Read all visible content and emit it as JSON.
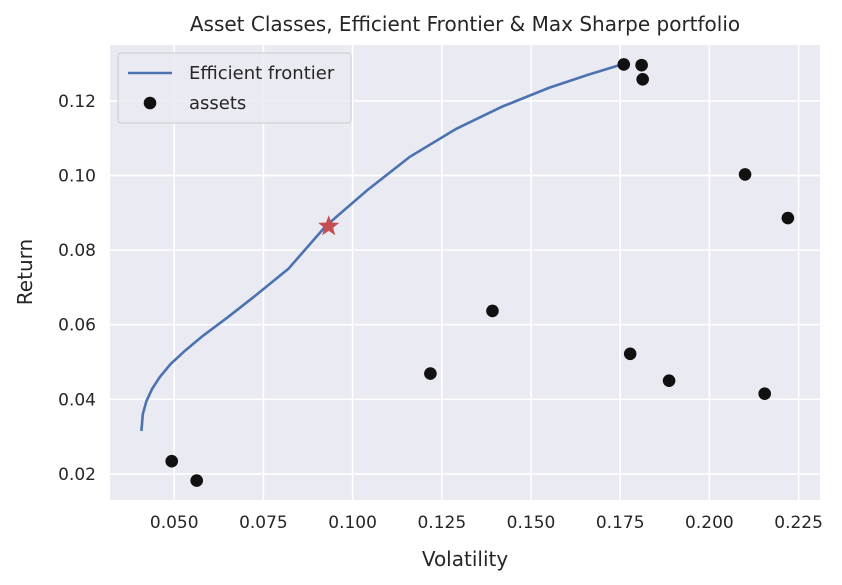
{
  "chart_data": {
    "type": "scatter",
    "title": "Asset Classes, Efficient Frontier & Max Sharpe portfolio",
    "xlabel": "Volatility",
    "ylabel": "Return",
    "xlim": [
      0.032,
      0.231
    ],
    "ylim": [
      0.013,
      0.135
    ],
    "xticks": [
      0.05,
      0.075,
      0.1,
      0.125,
      0.15,
      0.175,
      0.2,
      0.225
    ],
    "xtick_labels": [
      "0.050",
      "0.075",
      "0.100",
      "0.125",
      "0.150",
      "0.175",
      "0.200",
      "0.225"
    ],
    "yticks": [
      0.02,
      0.04,
      0.06,
      0.08,
      0.1,
      0.12
    ],
    "ytick_labels": [
      "0.02",
      "0.04",
      "0.06",
      "0.08",
      "0.10",
      "0.12"
    ],
    "grid": true,
    "legend": {
      "placement": "top-left",
      "entries": [
        "Efficient frontier",
        "assets"
      ]
    },
    "frontier": {
      "name": "Efficient frontier",
      "color": "#4c72b0",
      "x": [
        0.0408,
        0.0412,
        0.0422,
        0.0438,
        0.046,
        0.049,
        0.053,
        0.058,
        0.065,
        0.073,
        0.082,
        0.0925,
        0.104,
        0.116,
        0.129,
        0.142,
        0.155,
        0.166,
        0.1755
      ],
      "y": [
        0.0315,
        0.036,
        0.0395,
        0.0428,
        0.046,
        0.0495,
        0.053,
        0.057,
        0.062,
        0.068,
        0.075,
        0.0865,
        0.096,
        0.105,
        0.1125,
        0.1185,
        0.1235,
        0.127,
        0.1298
      ]
    },
    "assets": {
      "name": "assets",
      "color": "#111111",
      "points": [
        [
          0.0493,
          0.0234
        ],
        [
          0.0563,
          0.0182
        ],
        [
          0.1218,
          0.0469
        ],
        [
          0.1392,
          0.0637
        ],
        [
          0.1778,
          0.0522
        ],
        [
          0.1887,
          0.045
        ],
        [
          0.176,
          0.1298
        ],
        [
          0.181,
          0.1296
        ],
        [
          0.1813,
          0.1258
        ],
        [
          0.21,
          0.1003
        ],
        [
          0.222,
          0.0886
        ],
        [
          0.2155,
          0.0415
        ]
      ]
    },
    "max_sharpe": {
      "x": 0.0933,
      "y": 0.0864,
      "color": "#c44e52",
      "marker": "star"
    }
  },
  "colors": {
    "plot_background": "#eaeaf2",
    "grid": "#ffffff",
    "text": "#262626"
  }
}
